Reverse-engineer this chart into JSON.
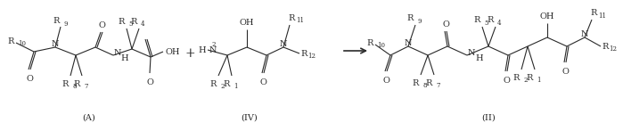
{
  "bg_color": "#ffffff",
  "fig_width": 6.99,
  "fig_height": 1.47,
  "dpi": 100,
  "lw": 0.8,
  "fs_main": 7.0,
  "fs_super": 5.0,
  "color": "#2a2a2a",
  "label_A": "(A)",
  "label_IV": "(IV)",
  "label_II": "(II)"
}
